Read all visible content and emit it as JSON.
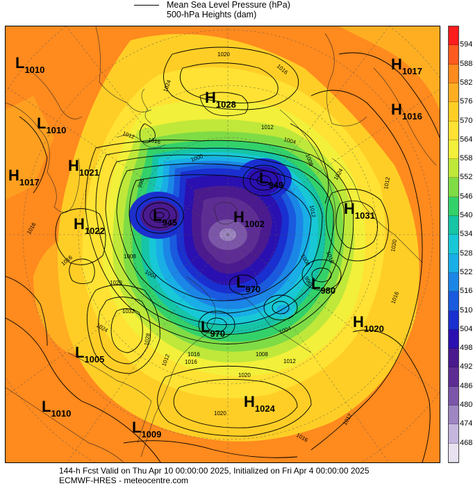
{
  "legend": {
    "mslp_label": "Mean Sea Level Pressure (hPa)",
    "heights_label": "500-hPa Heights (dam)"
  },
  "footer": {
    "forecast_line": "144-h Fcst Valid on Thu Apr 10 00:00:00 2025, Initialized on Fri Apr  4 00:00:00 2025",
    "source_line": "ECMWF-HRES  - meteocentre.com"
  },
  "colorbar": {
    "levels": [
      "594",
      "588",
      "582",
      "576",
      "570",
      "564",
      "558",
      "552",
      "546",
      "540",
      "534",
      "528",
      "522",
      "516",
      "510",
      "504",
      "498",
      "492",
      "486",
      "480",
      "474",
      "468"
    ],
    "colors": [
      "#ff1c1c",
      "#ff5a1f",
      "#ff8a1e",
      "#ffae22",
      "#ffce26",
      "#ffe233",
      "#f2f03a",
      "#bfe83a",
      "#7fdc45",
      "#33d16a",
      "#16c4a6",
      "#18c8d6",
      "#19aee6",
      "#1b86e6",
      "#1a5ade",
      "#1a2fcf",
      "#2a10b0",
      "#4a1a8e",
      "#5e2d93",
      "#7c56a8",
      "#9e86c2",
      "#c4b6dd",
      "#e8e2f0"
    ]
  },
  "pressure_systems": [
    {
      "type": "L",
      "value": "1010"
    },
    {
      "type": "L",
      "value": "1010"
    },
    {
      "type": "H",
      "value": "1028"
    },
    {
      "type": "H",
      "value": "1017"
    },
    {
      "type": "H",
      "value": "1016"
    },
    {
      "type": "H",
      "value": "1021"
    },
    {
      "type": "H",
      "value": "1017"
    },
    {
      "type": "L",
      "value": "949"
    },
    {
      "type": "H",
      "value": "1031"
    },
    {
      "type": "H",
      "value": "1022"
    },
    {
      "type": "L",
      "value": "945"
    },
    {
      "type": "H",
      "value": "1002"
    },
    {
      "type": "L",
      "value": "970"
    },
    {
      "type": "L",
      "value": "980"
    },
    {
      "type": "L",
      "value": "970"
    },
    {
      "type": "H",
      "value": "1020"
    },
    {
      "type": "L",
      "value": "1005"
    },
    {
      "type": "H",
      "value": "1024"
    },
    {
      "type": "L",
      "value": "1010"
    },
    {
      "type": "L",
      "value": "1009"
    }
  ],
  "contour_labels": [
    "1020",
    "1016",
    "1024",
    "1012",
    "1016",
    "1012",
    "1004",
    "1008",
    "1000",
    "996",
    "1024",
    "1012",
    "1016",
    "1020",
    "1016",
    "1012",
    "1008",
    "996",
    "1008",
    "1004",
    "1016",
    "1020",
    "1032",
    "1024",
    "1028",
    "1016",
    "1020",
    "1012",
    "1008",
    "1004",
    "1016",
    "1012",
    "1016",
    "1020",
    "1012",
    "1016"
  ]
}
